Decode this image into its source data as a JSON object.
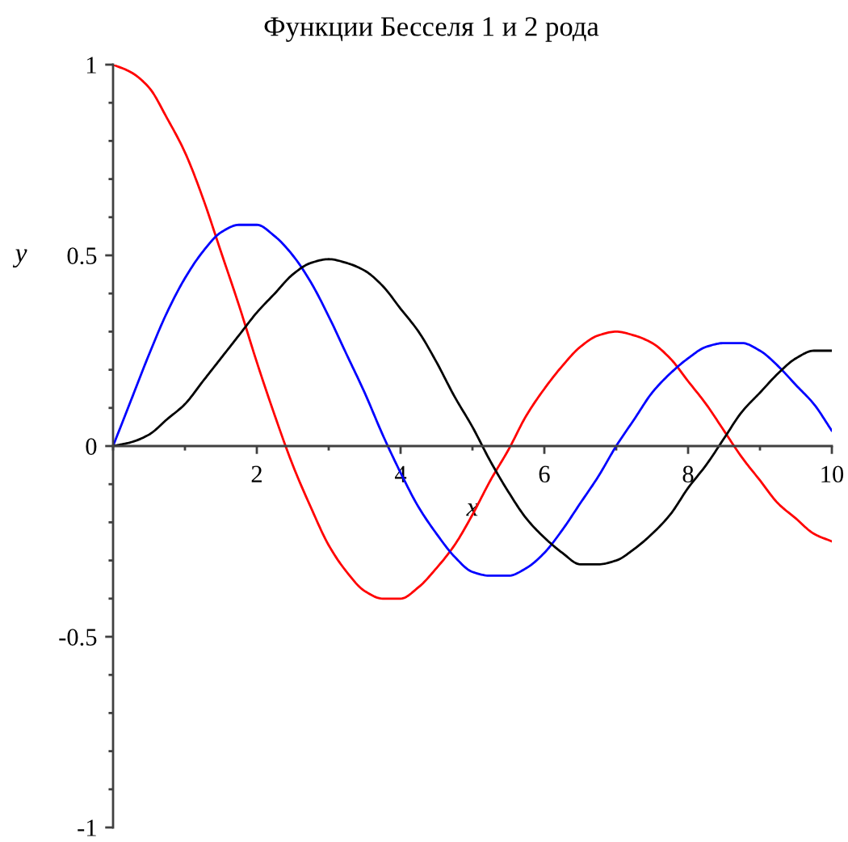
{
  "chart_data": {
    "type": "line",
    "title": "Функции Бесселя 1 и 2 рода",
    "xlabel": "x",
    "ylabel": "y",
    "x": [
      0,
      0.25,
      0.5,
      0.75,
      1,
      1.25,
      1.5,
      1.75,
      2,
      2.25,
      2.5,
      2.75,
      3,
      3.25,
      3.5,
      3.75,
      4,
      4.25,
      4.5,
      4.75,
      5,
      5.25,
      5.5,
      5.75,
      6,
      6.25,
      6.5,
      6.75,
      7,
      7.25,
      7.5,
      7.75,
      8,
      8.25,
      8.5,
      8.75,
      9,
      9.25,
      9.5,
      9.75,
      10
    ],
    "series": [
      {
        "color": "#ff0000",
        "values": [
          1,
          0.98,
          0.94,
          0.86,
          0.77,
          0.65,
          0.51,
          0.37,
          0.22,
          0.08,
          -0.05,
          -0.16,
          -0.26,
          -0.33,
          -0.38,
          -0.4,
          -0.4,
          -0.37,
          -0.32,
          -0.26,
          -0.18,
          -0.09,
          -0.01,
          0.08,
          0.15,
          0.21,
          0.26,
          0.29,
          0.3,
          0.29,
          0.27,
          0.23,
          0.17,
          0.11,
          0.04,
          -0.03,
          -0.09,
          -0.15,
          -0.19,
          -0.23,
          -0.25
        ]
      },
      {
        "color": "#0000ff",
        "values": [
          0,
          0.12,
          0.24,
          0.35,
          0.44,
          0.51,
          0.56,
          0.58,
          0.58,
          0.55,
          0.5,
          0.43,
          0.34,
          0.24,
          0.14,
          0.03,
          -0.07,
          -0.16,
          -0.23,
          -0.29,
          -0.33,
          -0.34,
          -0.34,
          -0.32,
          -0.28,
          -0.22,
          -0.15,
          -0.08,
          0,
          0.07,
          0.14,
          0.19,
          0.23,
          0.26,
          0.27,
          0.27,
          0.25,
          0.21,
          0.16,
          0.11,
          0.04
        ]
      },
      {
        "color": "#000000",
        "values": [
          0,
          0.01,
          0.03,
          0.07,
          0.11,
          0.17,
          0.23,
          0.29,
          0.35,
          0.4,
          0.45,
          0.48,
          0.49,
          0.48,
          0.46,
          0.42,
          0.36,
          0.3,
          0.22,
          0.13,
          0.05,
          -0.04,
          -0.12,
          -0.19,
          -0.24,
          -0.28,
          -0.31,
          -0.31,
          -0.3,
          -0.27,
          -0.23,
          -0.18,
          -0.11,
          -0.05,
          0.02,
          0.09,
          0.14,
          0.19,
          0.23,
          0.25,
          0.25
        ]
      }
    ],
    "xlim": [
      0,
      10
    ],
    "ylim": [
      -1,
      1
    ],
    "xticks": [
      2,
      4,
      6,
      8,
      10
    ],
    "yticks": [
      -1,
      -0.5,
      0,
      0.5,
      1
    ],
    "grid": false,
    "marker": "none",
    "line_style": "solid"
  }
}
